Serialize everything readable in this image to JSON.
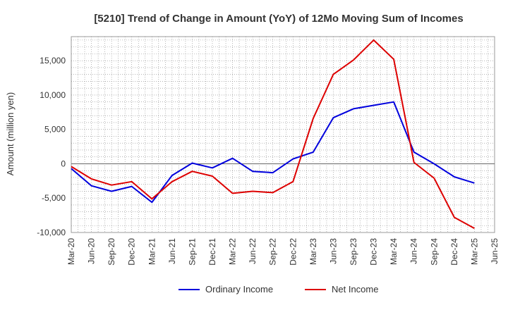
{
  "chart_data": {
    "type": "line",
    "title": "[5210]  Trend of Change in Amount (YoY) of 12Mo Moving Sum of Incomes",
    "xlabel": "",
    "ylabel": "Amount (million yen)",
    "ylim": [
      -10000,
      18500
    ],
    "yticks": [
      -10000,
      -5000,
      0,
      5000,
      10000,
      15000
    ],
    "ytick_labels": [
      "-10,000",
      "-5,000",
      "0",
      "5,000",
      "10,000",
      "15,000"
    ],
    "categories": [
      "Mar-20",
      "Jun-20",
      "Sep-20",
      "Dec-20",
      "Mar-21",
      "Jun-21",
      "Sep-21",
      "Dec-21",
      "Mar-22",
      "Jun-22",
      "Sep-22",
      "Dec-22",
      "Mar-23",
      "Jun-23",
      "Sep-23",
      "Dec-23",
      "Mar-24",
      "Jun-24",
      "Sep-24",
      "Dec-24",
      "Mar-25",
      "Jun-25"
    ],
    "grid": true,
    "legend_position": "bottom",
    "series": [
      {
        "name": "Ordinary Income",
        "color": "#0000dd",
        "values": [
          -700,
          -3200,
          -4000,
          -3300,
          -5600,
          -1700,
          100,
          -600,
          800,
          -1100,
          -1300,
          700,
          1700,
          6700,
          8000,
          8500,
          9000,
          1700,
          0,
          -1900,
          -2800,
          null
        ]
      },
      {
        "name": "Net Income",
        "color": "#dd0000",
        "values": [
          -400,
          -2200,
          -3100,
          -2600,
          -5100,
          -2600,
          -1100,
          -1800,
          -4300,
          -4000,
          -4200,
          -2600,
          6600,
          13000,
          15100,
          18000,
          15200,
          200,
          -2100,
          -7800,
          -9400,
          null
        ]
      }
    ]
  }
}
